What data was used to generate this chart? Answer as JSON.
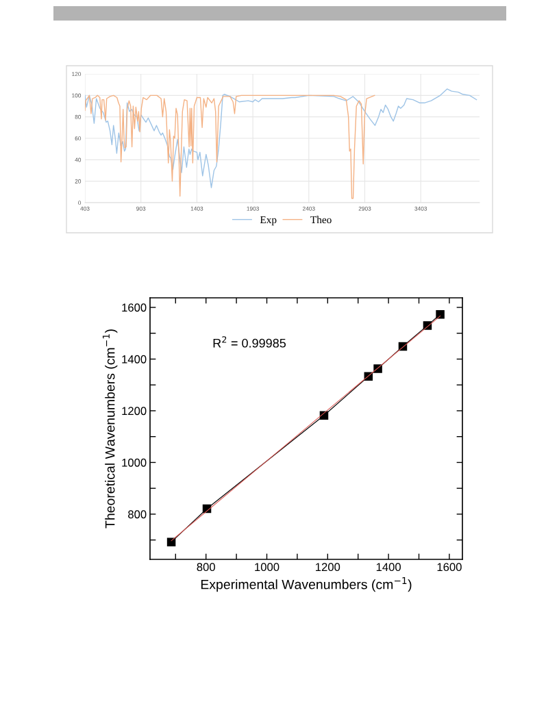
{
  "chart_data": [
    {
      "type": "line",
      "xlim": [
        403,
        3928
      ],
      "xticks": [
        403,
        903,
        1403,
        1903,
        2403,
        2903,
        3403
      ],
      "ylim": [
        0,
        120
      ],
      "yticks": [
        0,
        20,
        40,
        60,
        80,
        100,
        120
      ],
      "grid": true,
      "legend": "bottom",
      "series": [
        {
          "name": "Exp",
          "color": "#9dc3e6",
          "x": [
            403,
            417,
            442,
            464,
            485,
            505,
            536,
            566,
            593,
            607,
            627,
            644,
            658,
            674,
            687,
            705,
            723,
            740,
            756,
            766,
            780,
            801,
            821,
            842,
            866,
            887,
            903,
            934,
            948,
            968,
            995,
            1021,
            1042,
            1066,
            1083,
            1097,
            1117,
            1138,
            1158,
            1168,
            1189,
            1205,
            1230,
            1250,
            1266,
            1287,
            1311,
            1332,
            1342,
            1356,
            1373,
            1403,
            1413,
            1430,
            1454,
            1485,
            1505,
            1532,
            1556,
            1577,
            1597,
            1617,
            1634,
            1648,
            1699,
            1750,
            1781,
            1862,
            1903,
            1923,
            1954,
            1985,
            2169,
            2250,
            2282,
            2403,
            2626,
            2676,
            2737,
            2798,
            2848,
            2909,
            2950,
            2994,
            3026,
            3047,
            3067,
            3087,
            3111,
            3136,
            3158,
            3182,
            3203,
            3223,
            3253,
            3277,
            3334,
            3395,
            3435,
            3496,
            3577,
            3638,
            3678,
            3739,
            3779,
            3840,
            3901
          ],
          "values": [
            100,
            89,
            100,
            92,
            74,
            97,
            88,
            84,
            75,
            76,
            67,
            54,
            72,
            60,
            46,
            65,
            53,
            57,
            48,
            50,
            93,
            85,
            87,
            82,
            80,
            67,
            82,
            77,
            75,
            79,
            73,
            67,
            72,
            66,
            63,
            65,
            60,
            54,
            43,
            42,
            31,
            43,
            59,
            42,
            28,
            52,
            33,
            50,
            45,
            50,
            48,
            47,
            40,
            47,
            25,
            45,
            35,
            14,
            30,
            34,
            50,
            75,
            100,
            101,
            99,
            96,
            94,
            95,
            94,
            96,
            94,
            97,
            97,
            98,
            98,
            100,
            99,
            97,
            95,
            99,
            94,
            84,
            78,
            72,
            80,
            87,
            84,
            91,
            87,
            80,
            76,
            83,
            90,
            88,
            91,
            97,
            96,
            93,
            93,
            95,
            100,
            106,
            104,
            103,
            101,
            100,
            96
          ]
        },
        {
          "name": "Theo",
          "color": "#f4b183",
          "x": [
            403,
            409,
            423,
            442,
            458,
            470,
            495,
            515,
            536,
            550,
            556,
            572,
            587,
            597,
            627,
            658,
            689,
            703,
            715,
            725,
            736,
            744,
            752,
            760,
            771,
            780,
            797,
            811,
            823,
            834,
            846,
            858,
            874,
            883,
            893,
            907,
            923,
            954,
            989,
            1046,
            1083,
            1097,
            1111,
            1128,
            1148,
            1158,
            1168,
            1183,
            1195,
            1205,
            1217,
            1230,
            1242,
            1252,
            1264,
            1274,
            1291,
            1315,
            1334,
            1342,
            1350,
            1356,
            1366,
            1379,
            1403,
            1434,
            1450,
            1464,
            1485,
            1499,
            1536,
            1556,
            1570,
            1581,
            1597,
            1638,
            1699,
            1726,
            1740,
            1754,
            1801,
            2079,
            2626,
            2686,
            2737,
            2757,
            2767,
            2777,
            2787,
            2799,
            2811,
            2828,
            2852,
            2872,
            2889,
            2901,
            2919,
            2990
          ],
          "values": [
            86,
            95,
            97,
            100,
            83,
            97,
            98,
            100,
            98,
            78,
            96,
            96,
            77,
            97,
            99,
            100,
            98,
            93,
            90,
            38,
            63,
            87,
            60,
            51,
            52,
            87,
            95,
            90,
            52,
            90,
            69,
            89,
            76,
            85,
            66,
            88,
            98,
            96,
            100,
            100,
            97,
            80,
            97,
            85,
            37,
            68,
            57,
            20,
            62,
            60,
            88,
            82,
            45,
            6,
            50,
            85,
            96,
            95,
            52,
            88,
            53,
            88,
            37,
            90,
            98,
            98,
            70,
            97,
            89,
            98,
            93,
            97,
            85,
            38,
            90,
            99,
            99,
            94,
            83,
            99,
            100,
            100,
            100,
            99,
            96,
            80,
            48,
            50,
            4,
            4,
            50,
            90,
            95,
            92,
            36,
            80,
            97,
            100
          ]
        }
      ]
    },
    {
      "type": "line",
      "xlabel": "Experimental Wavenumbers (cm$^{−1}$)",
      "ylabel": "Theoretical Wavenumbers (cm$^{−1}$)",
      "annotations": [
        "R$^{2}$ = 0.99985"
      ],
      "xlim": [
        616,
        1643
      ],
      "xticks": [
        {
          "value": 700,
          "label": null
        },
        800,
        {
          "value": 900,
          "label": null
        },
        1000,
        {
          "value": 1100,
          "label": null
        },
        1200,
        {
          "value": 1300,
          "label": null
        },
        1400,
        {
          "value": 1500,
          "label": null
        },
        1600
      ],
      "ylim": [
        625,
        1637
      ],
      "yticks": [
        {
          "value": 700,
          "label": null
        },
        800,
        {
          "value": 900,
          "label": null
        },
        1000,
        {
          "value": 1100,
          "label": null
        },
        1200,
        {
          "value": 1300,
          "label": null
        },
        1400,
        {
          "value": 1500,
          "label": null
        },
        1600
      ],
      "grid": false,
      "legend": false,
      "series": [
        {
          "color": "#000000",
          "marker": "square",
          "x": [
            686,
            803,
            1188,
            1334,
            1365,
            1447,
            1528,
            1570
          ],
          "values": [
            692,
            821,
            1182,
            1333,
            1363,
            1449,
            1530,
            1573
          ]
        },
        {
          "color": "#d9534f",
          "marker": "none",
          "x": [
            686,
            1570
          ],
          "values": [
            697,
            1567
          ]
        }
      ]
    }
  ]
}
